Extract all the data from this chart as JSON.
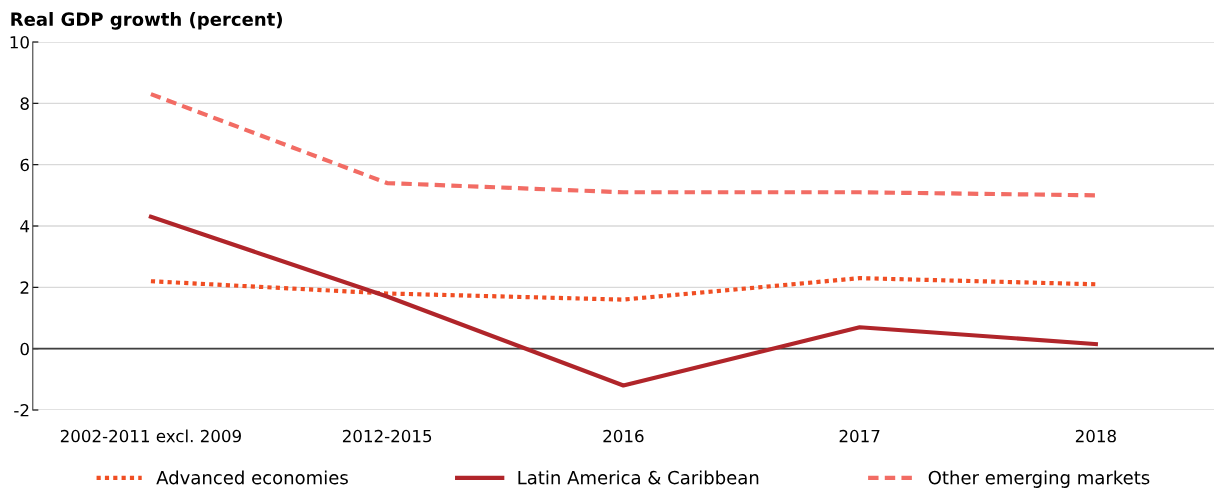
{
  "chart_data": {
    "type": "line",
    "title": "Real GDP growth (percent)",
    "categories": [
      "2002-2011 excl. 2009",
      "2012-2015",
      "2016",
      "2017",
      "2018"
    ],
    "series": [
      {
        "name": "Advanced economies",
        "color": "#f04e23",
        "line_style": "dotted",
        "values": [
          2.2,
          1.8,
          1.6,
          2.3,
          2.1
        ]
      },
      {
        "name": "Latin America & Caribbean",
        "color": "#b0252a",
        "line_style": "solid",
        "values": [
          4.3,
          1.7,
          -1.2,
          0.7,
          0.15
        ]
      },
      {
        "name": "Other emerging markets",
        "color": "#f26c64",
        "line_style": "dashed",
        "values": [
          8.3,
          5.4,
          5.1,
          5.1,
          5.0
        ]
      }
    ],
    "ylim": [
      -2,
      10
    ],
    "yticks": [
      {
        "value": -2,
        "label": "-2"
      },
      0,
      2,
      4,
      6,
      8,
      10
    ],
    "ref_lines": [
      {
        "axis": "y",
        "value": 0,
        "color": "#404040"
      }
    ],
    "grid": "y",
    "legend": "bottom"
  }
}
